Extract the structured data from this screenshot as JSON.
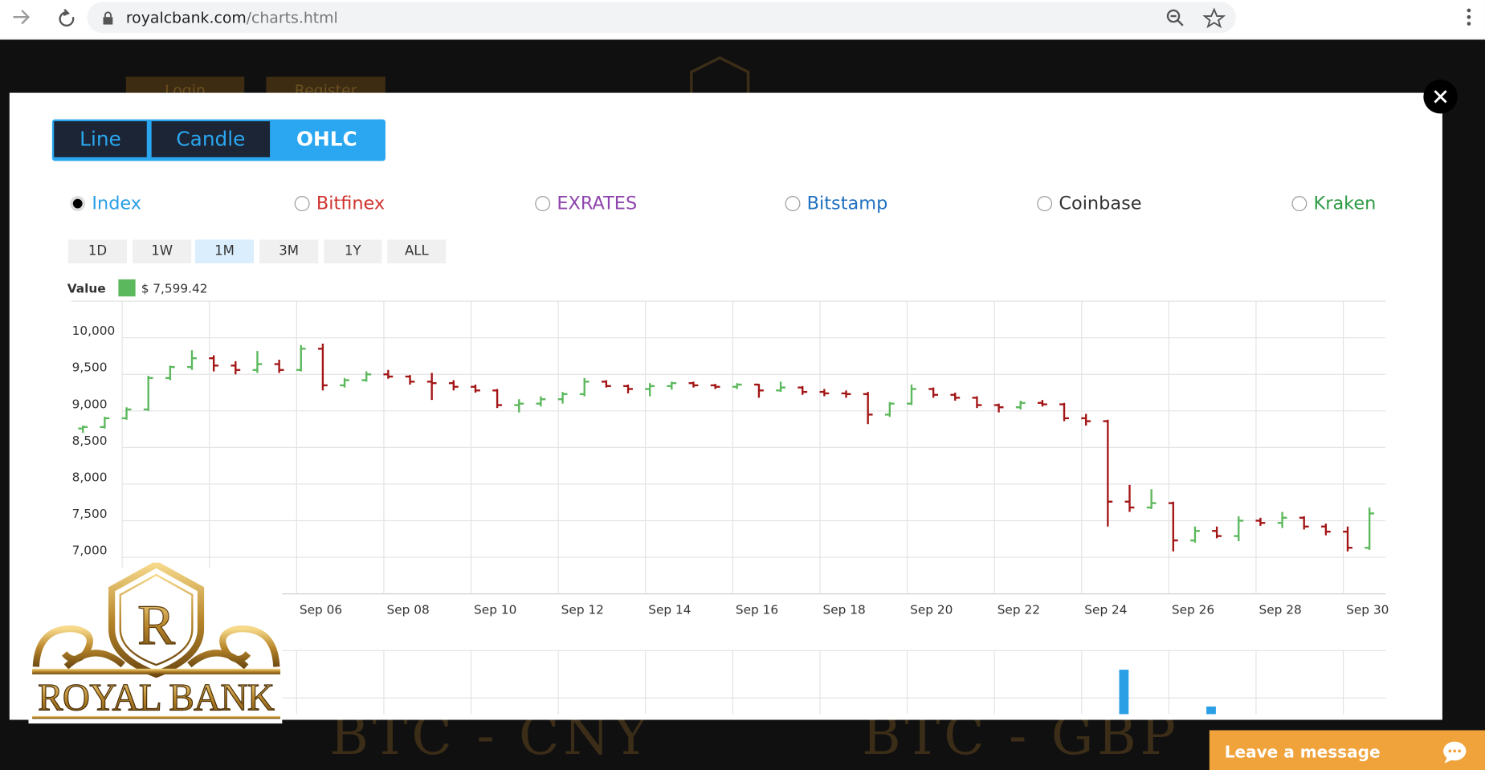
{
  "browser": {
    "url_domain": "royalcbank.com",
    "url_path": "/charts.html"
  },
  "background": {
    "buttons": [
      "Login",
      "Register"
    ],
    "pairs": [
      "BTC - CNY",
      "BTC - GBP"
    ]
  },
  "modal": {
    "tabs": [
      "Line",
      "Candle",
      "OHLC"
    ],
    "active_tab": 2,
    "sources": [
      {
        "name": "Index",
        "color": "#2a9fe6"
      },
      {
        "name": "Bitfinex",
        "color": "#d0312d"
      },
      {
        "name": "EXRATES",
        "color": "#8e44ad"
      },
      {
        "name": "Bitstamp",
        "color": "#1f6fc1"
      },
      {
        "name": "Coinbase",
        "color": "#333333"
      },
      {
        "name": "Kraken",
        "color": "#2e9b45"
      }
    ],
    "selected_source": 0,
    "ranges": [
      "1D",
      "1W",
      "1M",
      "3M",
      "1Y",
      "ALL"
    ],
    "active_range": 2
  },
  "chart_data": {
    "type": "ohlc",
    "categories": [
      null,
      null,
      null,
      null,
      null,
      null,
      null,
      null,
      null,
      null,
      "Sep 06",
      null,
      null,
      null,
      "Sep 08",
      null,
      null,
      null,
      "Sep 10",
      null,
      null,
      null,
      "Sep 12",
      null,
      null,
      null,
      "Sep 14",
      null,
      null,
      null,
      "Sep 16",
      null,
      null,
      null,
      "Sep 18",
      null,
      null,
      null,
      "Sep 20",
      null,
      null,
      null,
      "Sep 22",
      null,
      null,
      null,
      "Sep 24",
      null,
      null,
      null,
      "Sep 26",
      null,
      null,
      null,
      "Sep 28",
      null,
      null,
      null,
      "Sep 30",
      null
    ],
    "series": [
      {
        "name": "Value",
        "up_color": "#5cb85c",
        "down_color": "#a31515",
        "open": [
          8760,
          8780,
          8900,
          9020,
          9450,
          9600,
          9720,
          9620,
          9560,
          9640,
          9560,
          9850,
          9350,
          9420,
          9500,
          9470,
          9400,
          9380,
          9330,
          9280,
          9080,
          9100,
          9160,
          9230,
          9400,
          9340,
          9300,
          9340,
          9380,
          9350,
          9330,
          9360,
          9280,
          9320,
          9260,
          9240,
          9230,
          8950,
          9100,
          9300,
          9220,
          9180,
          9080,
          9050,
          9110,
          9090,
          8900,
          8860,
          7760,
          7680,
          7740,
          7230,
          7360,
          7290,
          7500,
          7470,
          7540,
          7420,
          7350,
          7130
        ],
        "high": [
          8800,
          8920,
          9050,
          9480,
          9620,
          9830,
          9760,
          9680,
          9820,
          9700,
          9900,
          9920,
          9450,
          9540,
          9560,
          9490,
          9520,
          9420,
          9360,
          9300,
          9160,
          9200,
          9260,
          9450,
          9420,
          9360,
          9380,
          9400,
          9400,
          9370,
          9380,
          9370,
          9400,
          9340,
          9300,
          9280,
          9260,
          9120,
          9360,
          9320,
          9250,
          9200,
          9100,
          9140,
          9150,
          9110,
          8960,
          8880,
          7990,
          7930,
          7760,
          7420,
          7420,
          7560,
          7540,
          7620,
          7560,
          7460,
          7420,
          7680
        ],
        "low": [
          8700,
          8760,
          8880,
          9000,
          9420,
          9560,
          9540,
          9500,
          9520,
          9520,
          9540,
          9280,
          9320,
          9400,
          9440,
          9360,
          9150,
          9280,
          9250,
          9040,
          8980,
          9060,
          9100,
          9200,
          9320,
          9240,
          9200,
          9290,
          9320,
          9300,
          9300,
          9180,
          9260,
          9220,
          9200,
          9180,
          8820,
          8920,
          9080,
          9180,
          9140,
          9040,
          8980,
          9020,
          9060,
          8860,
          8800,
          7420,
          7620,
          7660,
          7080,
          7200,
          7260,
          7220,
          7430,
          7400,
          7380,
          7300,
          7080,
          7100
        ],
        "close": [
          8780,
          8900,
          9020,
          9450,
          9600,
          9720,
          9620,
          9560,
          9640,
          9560,
          9850,
          9350,
          9420,
          9500,
          9470,
          9400,
          9380,
          9330,
          9280,
          9080,
          9100,
          9160,
          9230,
          9400,
          9340,
          9300,
          9340,
          9380,
          9350,
          9330,
          9360,
          9280,
          9320,
          9260,
          9240,
          9230,
          8950,
          9100,
          9300,
          9220,
          9180,
          9080,
          9050,
          9110,
          9090,
          8900,
          8860,
          7760,
          7680,
          7740,
          7230,
          7360,
          7290,
          7500,
          7470,
          7540,
          7420,
          7350,
          7130,
          7599.42
        ],
        "last_value_label": "$ 7,599.42"
      }
    ],
    "ylim": [
      6500,
      10500
    ],
    "yticks": [
      {
        "value": 7000,
        "label": "7,000"
      },
      {
        "value": 7500,
        "label": "7,500"
      },
      {
        "value": 8000,
        "label": "8,000"
      },
      {
        "value": 8500,
        "label": "8,500"
      },
      {
        "value": 9000,
        "label": "9,000"
      },
      {
        "value": 9500,
        "label": "9,500"
      },
      {
        "value": 10000,
        "label": "10,000"
      }
    ],
    "grid": true,
    "volume": {
      "color": "#2a9fe6",
      "ylim": [
        0,
        1000
      ],
      "values": [
        null,
        null,
        null,
        null,
        null,
        null,
        null,
        null,
        null,
        null,
        null,
        null,
        null,
        null,
        null,
        null,
        null,
        null,
        null,
        null,
        null,
        null,
        null,
        null,
        null,
        null,
        null,
        null,
        null,
        null,
        null,
        null,
        null,
        null,
        null,
        null,
        null,
        null,
        null,
        null,
        null,
        null,
        null,
        null,
        null,
        null,
        null,
        700,
        null,
        null,
        null,
        120,
        null,
        null,
        null,
        null,
        null,
        null,
        null,
        null
      ]
    }
  },
  "logo": {
    "initial": "R",
    "name": "ROYAL BANK"
  },
  "chat": {
    "label": "Leave a message"
  }
}
